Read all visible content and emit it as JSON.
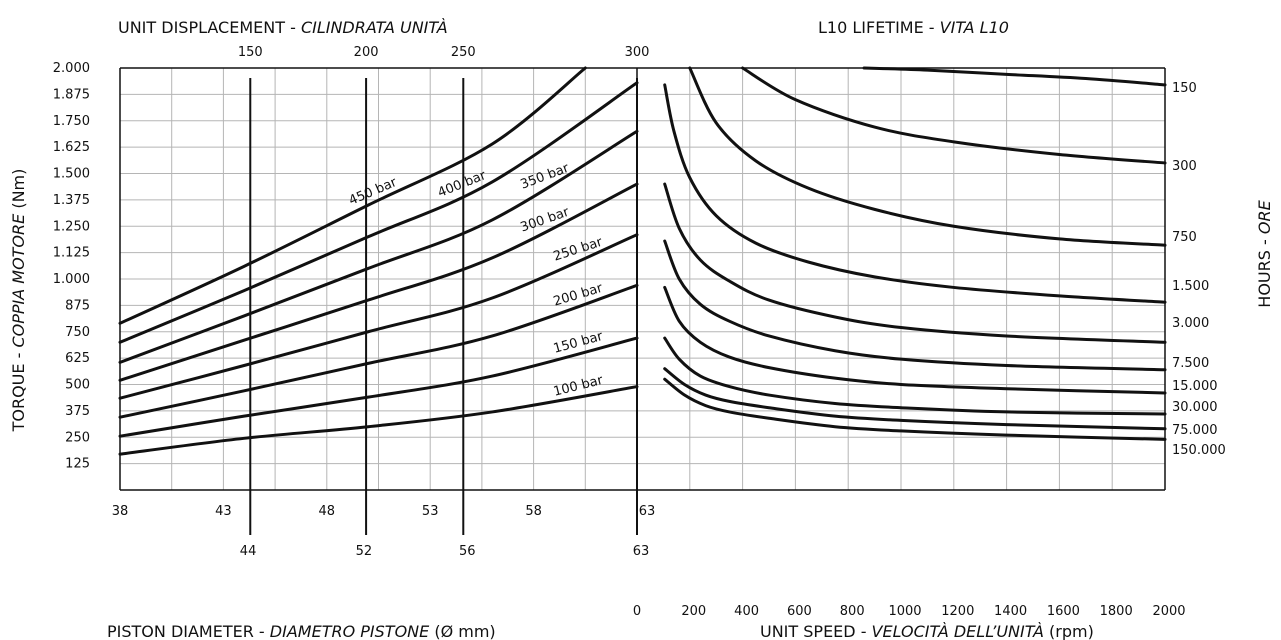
{
  "chart_data": [
    {
      "type": "line",
      "panel": "left",
      "title_top_plain": "UNIT DISPLACEMENT - ",
      "title_top_italic": "CILINDRATA UNITÀ",
      "xlabel_plain": "PISTON DIAMETER - ",
      "xlabel_italic": "DIAMETRO PISTONE",
      "xlabel_unit": " (Ø mm)",
      "ylabel_plain": "TORQUE - ",
      "ylabel_italic": "COPPIA MOTORE",
      "ylabel_unit": "  (Nm)",
      "xlim": [
        38,
        63
      ],
      "ylim": [
        0,
        2000
      ],
      "x_ticks": [
        "38",
        "43",
        "48",
        "53",
        "58",
        "63"
      ],
      "y_ticks": [
        "2.000",
        "1.875",
        "1.750",
        "1.625",
        "1.500",
        "1.375",
        "1.250",
        "1.125",
        "1.000",
        "875",
        "750",
        "625",
        "500",
        "375",
        "250",
        "125"
      ],
      "top_axis_ticks": [
        {
          "label": "150",
          "x": 44.3
        },
        {
          "label": "200",
          "x": 49.9
        },
        {
          "label": "250",
          "x": 54.6
        },
        {
          "label": "300",
          "x": 63
        }
      ],
      "bottom_axis_ticks": [
        {
          "label": "44",
          "x": 44
        },
        {
          "label": "52",
          "x": 49.6
        },
        {
          "label": "56",
          "x": 54.6
        },
        {
          "label": "63",
          "x": 63
        }
      ],
      "vertical_lines_x": [
        44.3,
        49.9,
        54.6,
        63
      ],
      "series": [
        {
          "name": "100 bar",
          "x": [
            38,
            44,
            50,
            56,
            63
          ],
          "y": [
            170,
            245,
            300,
            370,
            490
          ]
        },
        {
          "name": "150 bar",
          "x": [
            38,
            44,
            50,
            56,
            63
          ],
          "y": [
            255,
            350,
            440,
            540,
            720
          ]
        },
        {
          "name": "200 bar",
          "x": [
            38,
            44,
            50,
            56,
            63
          ],
          "y": [
            345,
            470,
            600,
            730,
            970
          ]
        },
        {
          "name": "250 bar",
          "x": [
            38,
            44,
            50,
            56,
            63
          ],
          "y": [
            435,
            590,
            750,
            910,
            1210
          ]
        },
        {
          "name": "300 bar",
          "x": [
            38,
            44,
            50,
            56,
            63
          ],
          "y": [
            520,
            710,
            900,
            1100,
            1450
          ]
        },
        {
          "name": "350 bar",
          "x": [
            38,
            44,
            50,
            56,
            63
          ],
          "y": [
            605,
            825,
            1050,
            1280,
            1700
          ]
        },
        {
          "name": "400 bar",
          "x": [
            38,
            44,
            50,
            56,
            63
          ],
          "y": [
            700,
            945,
            1200,
            1460,
            1930
          ]
        },
        {
          "name": "450 bar",
          "x": [
            38,
            44,
            50,
            56,
            60.5
          ],
          "y": [
            790,
            1060,
            1350,
            1640,
            2000
          ]
        }
      ]
    },
    {
      "type": "line",
      "panel": "right",
      "title_top_plain": "L10 LIFETIME - ",
      "title_top_italic": "VITA L10",
      "xlabel_plain": "UNIT SPEED - ",
      "xlabel_italic": "VELOCITÀ DELL’UNITÀ",
      "xlabel_unit": " (rpm)",
      "ylabel_plain": "HOURS - ",
      "ylabel_italic": "ORE",
      "xlim": [
        0,
        2000
      ],
      "ylim": [
        0,
        2000
      ],
      "x_ticks": [
        "0",
        "200",
        "400",
        "600",
        "800",
        "1000",
        "1200",
        "1400",
        "1600",
        "1800",
        "2000"
      ],
      "series": [
        {
          "name": "150",
          "x": [
            860,
            1100,
            1400,
            1700,
            2000
          ],
          "y": [
            2000,
            1990,
            1970,
            1950,
            1920
          ]
        },
        {
          "name": "300",
          "x": [
            400,
            600,
            900,
            1200,
            1600,
            2000
          ],
          "y": [
            2000,
            1850,
            1720,
            1650,
            1590,
            1550
          ]
        },
        {
          "name": "750",
          "x": [
            200,
            300,
            450,
            650,
            900,
            1200,
            1600,
            2000
          ],
          "y": [
            2000,
            1740,
            1560,
            1430,
            1330,
            1250,
            1190,
            1160
          ]
        },
        {
          "name": "1.500",
          "x": [
            105,
            140,
            200,
            300,
            450,
            650,
            900,
            1200,
            1600,
            2000
          ],
          "y": [
            1920,
            1700,
            1480,
            1300,
            1170,
            1080,
            1010,
            960,
            920,
            890
          ]
        },
        {
          "name": "3.000",
          "x": [
            105,
            160,
            240,
            350,
            500,
            750,
            1000,
            1400,
            2000
          ],
          "y": [
            1450,
            1240,
            1090,
            990,
            900,
            820,
            770,
            730,
            700
          ]
        },
        {
          "name": "7.500",
          "x": [
            105,
            160,
            240,
            350,
            500,
            750,
            1000,
            1400,
            2000
          ],
          "y": [
            1180,
            1000,
            880,
            800,
            730,
            660,
            620,
            590,
            570
          ]
        },
        {
          "name": "15.000",
          "x": [
            105,
            160,
            240,
            350,
            500,
            750,
            1000,
            1400,
            2000
          ],
          "y": [
            960,
            800,
            700,
            630,
            580,
            530,
            500,
            480,
            460
          ]
        },
        {
          "name": "30.000",
          "x": [
            105,
            160,
            240,
            350,
            500,
            750,
            1000,
            1400,
            2000
          ],
          "y": [
            720,
            620,
            540,
            490,
            450,
            410,
            390,
            370,
            360
          ]
        },
        {
          "name": "75.000",
          "x": [
            105,
            180,
            260,
            350,
            500,
            750,
            1000,
            1400,
            2000
          ],
          "y": [
            575,
            500,
            450,
            420,
            390,
            350,
            330,
            310,
            290
          ]
        },
        {
          "name": "150.000",
          "x": [
            105,
            180,
            260,
            350,
            500,
            750,
            1000,
            1400,
            2000
          ],
          "y": [
            575,
            500,
            450,
            420,
            390,
            350,
            330,
            310,
            290
          ]
        }
      ],
      "right_labels": [
        "150",
        "300",
        "750",
        "1.500",
        "3.000",
        "7.500",
        "15.000",
        "30.000",
        "75.000",
        "150.000"
      ]
    }
  ]
}
